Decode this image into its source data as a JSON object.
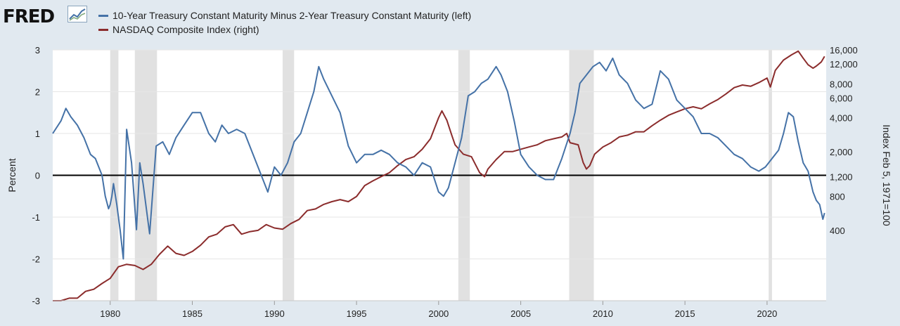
{
  "brand": {
    "logo_text": "FRED"
  },
  "chart_data": {
    "type": "line",
    "series": [
      {
        "name": "10-Year Treasury Constant Maturity Minus 2-Year Treasury Constant Maturity (left)",
        "axis": "left",
        "color": "#4572a7",
        "x": [
          1976.5,
          1977.0,
          1977.3,
          1977.6,
          1978.0,
          1978.4,
          1978.8,
          1979.1,
          1979.5,
          1979.7,
          1979.9,
          1980.0,
          1980.1,
          1980.2,
          1980.4,
          1980.6,
          1980.8,
          1981.0,
          1981.3,
          1981.6,
          1981.8,
          1982.0,
          1982.4,
          1982.8,
          1983.2,
          1983.6,
          1984.0,
          1984.5,
          1985.0,
          1985.5,
          1986.0,
          1986.4,
          1986.8,
          1987.2,
          1987.7,
          1988.2,
          1988.7,
          1989.2,
          1989.6,
          1990.0,
          1990.4,
          1990.8,
          1991.2,
          1991.6,
          1992.0,
          1992.4,
          1992.7,
          1993.0,
          1993.5,
          1994.0,
          1994.5,
          1995.0,
          1995.5,
          1996.0,
          1996.5,
          1997.0,
          1997.5,
          1998.0,
          1998.5,
          1999.0,
          1999.5,
          2000.0,
          2000.3,
          2000.6,
          2001.0,
          2001.4,
          2001.8,
          2002.2,
          2002.6,
          2003.0,
          2003.5,
          2003.8,
          2004.2,
          2004.6,
          2005.0,
          2005.5,
          2006.0,
          2006.5,
          2007.0,
          2007.5,
          2008.0,
          2008.3,
          2008.6,
          2009.0,
          2009.4,
          2009.8,
          2010.2,
          2010.6,
          2011.0,
          2011.5,
          2012.0,
          2012.5,
          2013.0,
          2013.5,
          2014.0,
          2014.5,
          2015.0,
          2015.5,
          2016.0,
          2016.5,
          2017.0,
          2017.5,
          2018.0,
          2018.5,
          2019.0,
          2019.5,
          2019.9,
          2020.3,
          2020.7,
          2021.0,
          2021.3,
          2021.6,
          2021.9,
          2022.2,
          2022.5,
          2022.8,
          2023.0,
          2023.2,
          2023.4,
          2023.5
        ],
        "y": [
          1.0,
          1.3,
          1.6,
          1.4,
          1.2,
          0.9,
          0.5,
          0.4,
          0.0,
          -0.5,
          -0.8,
          -0.7,
          -0.5,
          -0.2,
          -0.7,
          -1.3,
          -2.0,
          1.1,
          0.3,
          -1.3,
          0.3,
          -0.2,
          -1.4,
          0.7,
          0.8,
          0.5,
          0.9,
          1.2,
          1.5,
          1.5,
          1.0,
          0.8,
          1.2,
          1.0,
          1.1,
          1.0,
          0.5,
          0.0,
          -0.4,
          0.2,
          0.0,
          0.3,
          0.8,
          1.0,
          1.5,
          2.0,
          2.6,
          2.3,
          1.9,
          1.5,
          0.7,
          0.3,
          0.5,
          0.5,
          0.6,
          0.5,
          0.3,
          0.2,
          0.0,
          0.3,
          0.2,
          -0.4,
          -0.5,
          -0.3,
          0.3,
          0.9,
          1.9,
          2.0,
          2.2,
          2.3,
          2.6,
          2.4,
          2.0,
          1.3,
          0.5,
          0.2,
          0.0,
          -0.1,
          -0.1,
          0.4,
          1.0,
          1.5,
          2.2,
          2.4,
          2.6,
          2.7,
          2.5,
          2.8,
          2.4,
          2.2,
          1.8,
          1.6,
          1.7,
          2.5,
          2.3,
          1.8,
          1.6,
          1.4,
          1.0,
          1.0,
          0.9,
          0.7,
          0.5,
          0.4,
          0.2,
          0.1,
          0.2,
          0.4,
          0.6,
          1.0,
          1.5,
          1.4,
          0.8,
          0.3,
          0.1,
          -0.4,
          -0.6,
          -0.7,
          -1.05,
          -0.9
        ],
        "ylim": [
          -3,
          3
        ],
        "yticks": [
          "3",
          "2",
          "1",
          "0",
          "-1",
          "-2",
          "-3"
        ]
      },
      {
        "name": "NASDAQ Composite Index (right)",
        "axis": "right",
        "color": "#8b2c2c",
        "log_scale": true,
        "x": [
          1976.5,
          1977.0,
          1977.5,
          1978.0,
          1978.5,
          1979.0,
          1979.5,
          1980.0,
          1980.5,
          1981.0,
          1981.5,
          1982.0,
          1982.5,
          1983.0,
          1983.5,
          1984.0,
          1984.5,
          1985.0,
          1985.5,
          1986.0,
          1986.5,
          1987.0,
          1987.5,
          1988.0,
          1988.5,
          1989.0,
          1989.5,
          1990.0,
          1990.5,
          1991.0,
          1991.5,
          1992.0,
          1992.5,
          1993.0,
          1993.5,
          1994.0,
          1994.5,
          1995.0,
          1995.5,
          1996.0,
          1996.5,
          1997.0,
          1997.5,
          1998.0,
          1998.5,
          1999.0,
          1999.5,
          2000.0,
          2000.2,
          2000.5,
          2000.8,
          2001.0,
          2001.5,
          2002.0,
          2002.5,
          2002.8,
          2003.0,
          2003.5,
          2004.0,
          2004.5,
          2005.0,
          2005.5,
          2006.0,
          2006.5,
          2007.0,
          2007.5,
          2007.8,
          2008.0,
          2008.5,
          2008.8,
          2009.0,
          2009.2,
          2009.5,
          2010.0,
          2010.5,
          2011.0,
          2011.5,
          2012.0,
          2012.5,
          2013.0,
          2013.5,
          2014.0,
          2014.5,
          2015.0,
          2015.5,
          2016.0,
          2016.5,
          2017.0,
          2017.5,
          2018.0,
          2018.5,
          2019.0,
          2019.5,
          2020.0,
          2020.2,
          2020.5,
          2021.0,
          2021.5,
          2021.9,
          2022.2,
          2022.5,
          2022.8,
          2023.0,
          2023.3,
          2023.5
        ],
        "y": [
          95,
          95,
          100,
          100,
          115,
          120,
          135,
          150,
          190,
          200,
          195,
          180,
          200,
          245,
          290,
          250,
          240,
          260,
          295,
          350,
          370,
          430,
          450,
          370,
          390,
          400,
          450,
          420,
          410,
          460,
          500,
          600,
          620,
          680,
          720,
          750,
          720,
          800,
          1000,
          1100,
          1200,
          1300,
          1500,
          1700,
          1800,
          2100,
          2600,
          4000,
          4600,
          3800,
          2800,
          2300,
          1900,
          1800,
          1300,
          1200,
          1400,
          1700,
          2000,
          2000,
          2100,
          2200,
          2300,
          2500,
          2600,
          2700,
          2900,
          2400,
          2300,
          1600,
          1400,
          1500,
          1900,
          2200,
          2400,
          2700,
          2800,
          3000,
          3000,
          3400,
          3800,
          4200,
          4500,
          4800,
          5000,
          4800,
          5300,
          5800,
          6500,
          7400,
          7800,
          7600,
          8200,
          9000,
          7500,
          10500,
          13000,
          14500,
          15600,
          13500,
          11800,
          11000,
          11500,
          12500,
          14000
        ],
        "yticks": [
          {
            "value": 400,
            "label": "400"
          },
          {
            "value": 800,
            "label": "800"
          },
          {
            "value": 1200,
            "label": "1,200"
          },
          {
            "value": 2000,
            "label": "2,000"
          },
          {
            "value": 4000,
            "label": "4,000"
          },
          {
            "value": 6000,
            "label": "6,000"
          },
          {
            "value": 8000,
            "label": "8,000"
          },
          {
            "value": 12000,
            "label": "12,000"
          },
          {
            "value": 16000,
            "label": "16,000"
          }
        ],
        "ylim": [
          95,
          16000
        ]
      }
    ],
    "xlim": [
      1976.5,
      2023.6
    ],
    "xticks": [
      "1980",
      "1985",
      "1990",
      "1995",
      "2000",
      "2005",
      "2010",
      "2015",
      "2020"
    ],
    "ylabel_left": "Percent",
    "ylabel_right": "Index Feb 5, 1971=100",
    "recessions": [
      [
        1980.0,
        1980.5
      ],
      [
        1981.5,
        1982.85
      ],
      [
        1990.5,
        1991.2
      ],
      [
        2001.2,
        2001.9
      ],
      [
        2007.95,
        2009.45
      ],
      [
        2020.1,
        2020.3
      ]
    ],
    "reference_line": 0,
    "grid": "horizontal",
    "legend_placement": "top"
  }
}
